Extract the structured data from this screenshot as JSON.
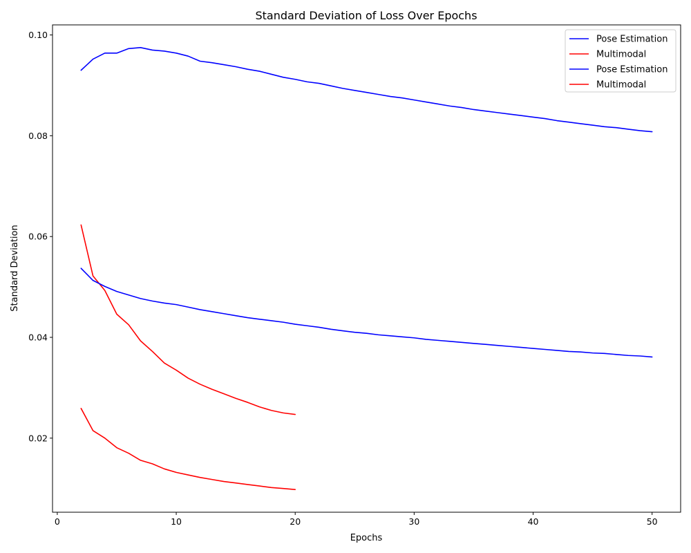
{
  "chart_data": {
    "type": "line",
    "title": "Standard Deviation of Loss Over Epochs",
    "xlabel": "Epochs",
    "ylabel": "Standard Deviation",
    "xlim": [
      -0.4,
      52.4
    ],
    "ylim": [
      0.0053,
      0.102
    ],
    "xticks": [
      0,
      10,
      20,
      30,
      40,
      50
    ],
    "xtick_labels": [
      "0",
      "10",
      "20",
      "30",
      "40",
      "50"
    ],
    "yticks": [
      0.02,
      0.04,
      0.06,
      0.08,
      0.1
    ],
    "ytick_labels": [
      "0.02",
      "0.04",
      "0.06",
      "0.08",
      "0.10"
    ],
    "grid": false,
    "legend_position": "top-right",
    "series": [
      {
        "name": "Pose Estimation",
        "color": "#0000ff",
        "x": [
          2,
          3,
          4,
          5,
          6,
          7,
          8,
          9,
          10,
          11,
          12,
          13,
          14,
          15,
          16,
          17,
          18,
          19,
          20,
          21,
          22,
          23,
          24,
          25,
          26,
          27,
          28,
          29,
          30,
          31,
          32,
          33,
          34,
          35,
          36,
          37,
          38,
          39,
          40,
          41,
          42,
          43,
          44,
          45,
          46,
          47,
          48,
          49,
          50
        ],
        "values": [
          0.093,
          0.0952,
          0.0964,
          0.0964,
          0.0973,
          0.0975,
          0.097,
          0.0968,
          0.0964,
          0.0958,
          0.0948,
          0.0945,
          0.0941,
          0.0937,
          0.0932,
          0.0928,
          0.0922,
          0.0916,
          0.0912,
          0.0907,
          0.0904,
          0.0899,
          0.0894,
          0.089,
          0.0886,
          0.0882,
          0.0878,
          0.0875,
          0.0871,
          0.0867,
          0.0863,
          0.0859,
          0.0856,
          0.0852,
          0.0849,
          0.0846,
          0.0843,
          0.084,
          0.0837,
          0.0834,
          0.083,
          0.0827,
          0.0824,
          0.0821,
          0.0818,
          0.0816,
          0.0813,
          0.081,
          0.0808
        ]
      },
      {
        "name": "Multimodal",
        "color": "#ff0000",
        "x": [
          2,
          3,
          4,
          5,
          6,
          7,
          8,
          9,
          10,
          11,
          12,
          13,
          14,
          15,
          16,
          17,
          18,
          19,
          20
        ],
        "values": [
          0.0623,
          0.0522,
          0.0493,
          0.0446,
          0.0425,
          0.0393,
          0.0372,
          0.0349,
          0.0335,
          0.0319,
          0.0307,
          0.0297,
          0.0288,
          0.0279,
          0.0271,
          0.0262,
          0.0255,
          0.025,
          0.0247
        ]
      },
      {
        "name": "Pose Estimation",
        "color": "#0000ff",
        "x": [
          2,
          3,
          4,
          5,
          6,
          7,
          8,
          9,
          10,
          11,
          12,
          13,
          14,
          15,
          16,
          17,
          18,
          19,
          20,
          21,
          22,
          23,
          24,
          25,
          26,
          27,
          28,
          29,
          30,
          31,
          32,
          33,
          34,
          35,
          36,
          37,
          38,
          39,
          40,
          41,
          42,
          43,
          44,
          45,
          46,
          47,
          48,
          49,
          50
        ],
        "values": [
          0.0537,
          0.0513,
          0.0501,
          0.0491,
          0.0484,
          0.0477,
          0.0472,
          0.0468,
          0.0465,
          0.046,
          0.0455,
          0.0451,
          0.0447,
          0.0443,
          0.0439,
          0.0436,
          0.0433,
          0.043,
          0.0426,
          0.0423,
          0.042,
          0.0416,
          0.0413,
          0.041,
          0.0408,
          0.0405,
          0.0403,
          0.0401,
          0.0399,
          0.0396,
          0.0394,
          0.0392,
          0.039,
          0.0388,
          0.0386,
          0.0384,
          0.0382,
          0.038,
          0.0378,
          0.0376,
          0.0374,
          0.0372,
          0.0371,
          0.0369,
          0.0368,
          0.0366,
          0.0364,
          0.0363,
          0.0361
        ]
      },
      {
        "name": "Multimodal",
        "color": "#ff0000",
        "x": [
          2,
          3,
          4,
          5,
          6,
          7,
          8,
          9,
          10,
          11,
          12,
          13,
          14,
          15,
          16,
          17,
          18,
          19,
          20
        ],
        "values": [
          0.0259,
          0.0215,
          0.02,
          0.0181,
          0.017,
          0.0156,
          0.0149,
          0.0139,
          0.0132,
          0.0127,
          0.0122,
          0.0118,
          0.0114,
          0.0111,
          0.0108,
          0.0105,
          0.0102,
          0.01,
          0.0098
        ]
      }
    ]
  }
}
